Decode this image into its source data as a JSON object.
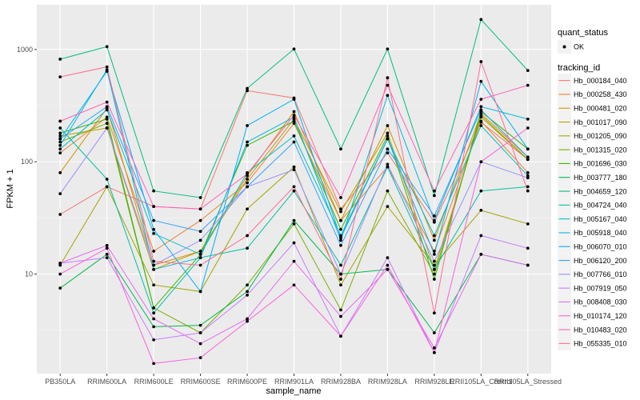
{
  "chart_data": {
    "type": "line",
    "xlabel": "sample_name",
    "ylabel": "FPKM + 1",
    "y_scale": "log10",
    "ylim": [
      1.3,
      2500
    ],
    "y_ticks": [
      {
        "value": 10,
        "label": "10"
      },
      {
        "value": 100,
        "label": "100"
      },
      {
        "value": 1000,
        "label": "1000"
      }
    ],
    "categories": [
      "PB350LA",
      "RRIM600LA",
      "RRIM600LE",
      "RRIM600SE",
      "RRIM600PE",
      "RRIM901LA",
      "RRIM928BA",
      "RRIM928LA",
      "RRIM928LE",
      "RRII105LA_Control",
      "RRII105LA_Stressed"
    ],
    "background": "#EBEBEB",
    "grid": true,
    "legend_position": "right",
    "legends": [
      {
        "title": "quant_status",
        "entries": [
          {
            "label": "OK",
            "kind": "point"
          }
        ]
      },
      {
        "title": "tracking_id",
        "entries": "series"
      }
    ],
    "series": [
      {
        "name": "Hb_000184_040",
        "color": "#F8766D",
        "values": [
          34,
          60,
          40,
          38,
          430,
          370,
          38,
          120,
          29,
          225,
          105
        ]
      },
      {
        "name": "Hb_000258_430",
        "color": "#EA8331",
        "values": [
          120,
          250,
          16,
          30,
          65,
          220,
          30,
          90,
          16,
          230,
          80
        ]
      },
      {
        "name": "Hb_000481_020",
        "color": "#D89000",
        "values": [
          80,
          300,
          12,
          16,
          75,
          280,
          30,
          210,
          20,
          270,
          110
        ]
      },
      {
        "name": "Hb_001017_090",
        "color": "#C09B00",
        "values": [
          170,
          200,
          11,
          16,
          70,
          240,
          36,
          180,
          11,
          250,
          105
        ]
      },
      {
        "name": "Hb_001205_090",
        "color": "#A3A500",
        "values": [
          12,
          60,
          8,
          7,
          38,
          90,
          8,
          40,
          12,
          37,
          28
        ]
      },
      {
        "name": "Hb_001315_020",
        "color": "#7CAE00",
        "values": [
          150,
          220,
          5,
          3,
          8,
          28,
          4.8,
          55,
          10,
          260,
          105
        ]
      },
      {
        "name": "Hb_001696_030",
        "color": "#39B600",
        "values": [
          180,
          240,
          5,
          15,
          140,
          230,
          25,
          170,
          9,
          280,
          130
        ]
      },
      {
        "name": "Hb_003777_180",
        "color": "#00BB4E",
        "values": [
          7.5,
          15,
          3.4,
          3.5,
          7,
          30,
          10,
          11,
          3,
          15,
          12
        ]
      },
      {
        "name": "Hb_004659_120",
        "color": "#00BF7D",
        "values": [
          820,
          1060,
          55,
          48,
          450,
          1010,
          130,
          1010,
          50,
          1850,
          650
        ]
      },
      {
        "name": "Hb_004724_040",
        "color": "#00C1A3",
        "values": [
          200,
          70,
          4.5,
          14,
          17,
          55,
          12,
          90,
          11,
          55,
          60
        ]
      },
      {
        "name": "Hb_005167_040",
        "color": "#00BFC4",
        "values": [
          130,
          290,
          23,
          15,
          80,
          170,
          22,
          160,
          22,
          210,
          75
        ]
      },
      {
        "name": "Hb_005918_040",
        "color": "#00BAE0",
        "values": [
          140,
          660,
          11,
          14,
          150,
          250,
          20,
          390,
          30,
          310,
          240
        ]
      },
      {
        "name": "Hb_006070_010",
        "color": "#00B0F6",
        "values": [
          160,
          640,
          25,
          7,
          210,
          360,
          21,
          160,
          15,
          520,
          130
        ]
      },
      {
        "name": "Hb_006120_200",
        "color": "#35A2FF",
        "values": [
          160,
          310,
          30,
          24,
          60,
          150,
          18,
          130,
          33,
          290,
          110
        ]
      },
      {
        "name": "Hb_007766_010",
        "color": "#9590FF",
        "values": [
          52,
          200,
          12,
          20,
          60,
          85,
          10,
          95,
          13,
          100,
          72
        ]
      },
      {
        "name": "Hb_007919_050",
        "color": "#C77CFF",
        "values": [
          12.5,
          14,
          2.6,
          3,
          6.5,
          19,
          2.8,
          14,
          2,
          22,
          17
        ]
      },
      {
        "name": "Hb_008408_030",
        "color": "#E76BF3",
        "values": [
          12.5,
          18,
          4,
          2.4,
          4,
          13,
          4.2,
          11,
          2.2,
          15,
          12
        ]
      },
      {
        "name": "Hb_010174_120",
        "color": "#FA62DB",
        "values": [
          10,
          17,
          1.6,
          1.8,
          3.8,
          8,
          2.8,
          12,
          2,
          100,
          200
        ]
      },
      {
        "name": "Hb_010483_020",
        "color": "#FF62BC",
        "values": [
          230,
          340,
          40,
          38,
          78,
          260,
          48,
          480,
          55,
          360,
          480
        ]
      },
      {
        "name": "Hb_055335_010",
        "color": "#FF6C91",
        "values": [
          570,
          700,
          13,
          12,
          22,
          60,
          9,
          560,
          4.5,
          780,
          55
        ]
      }
    ]
  }
}
